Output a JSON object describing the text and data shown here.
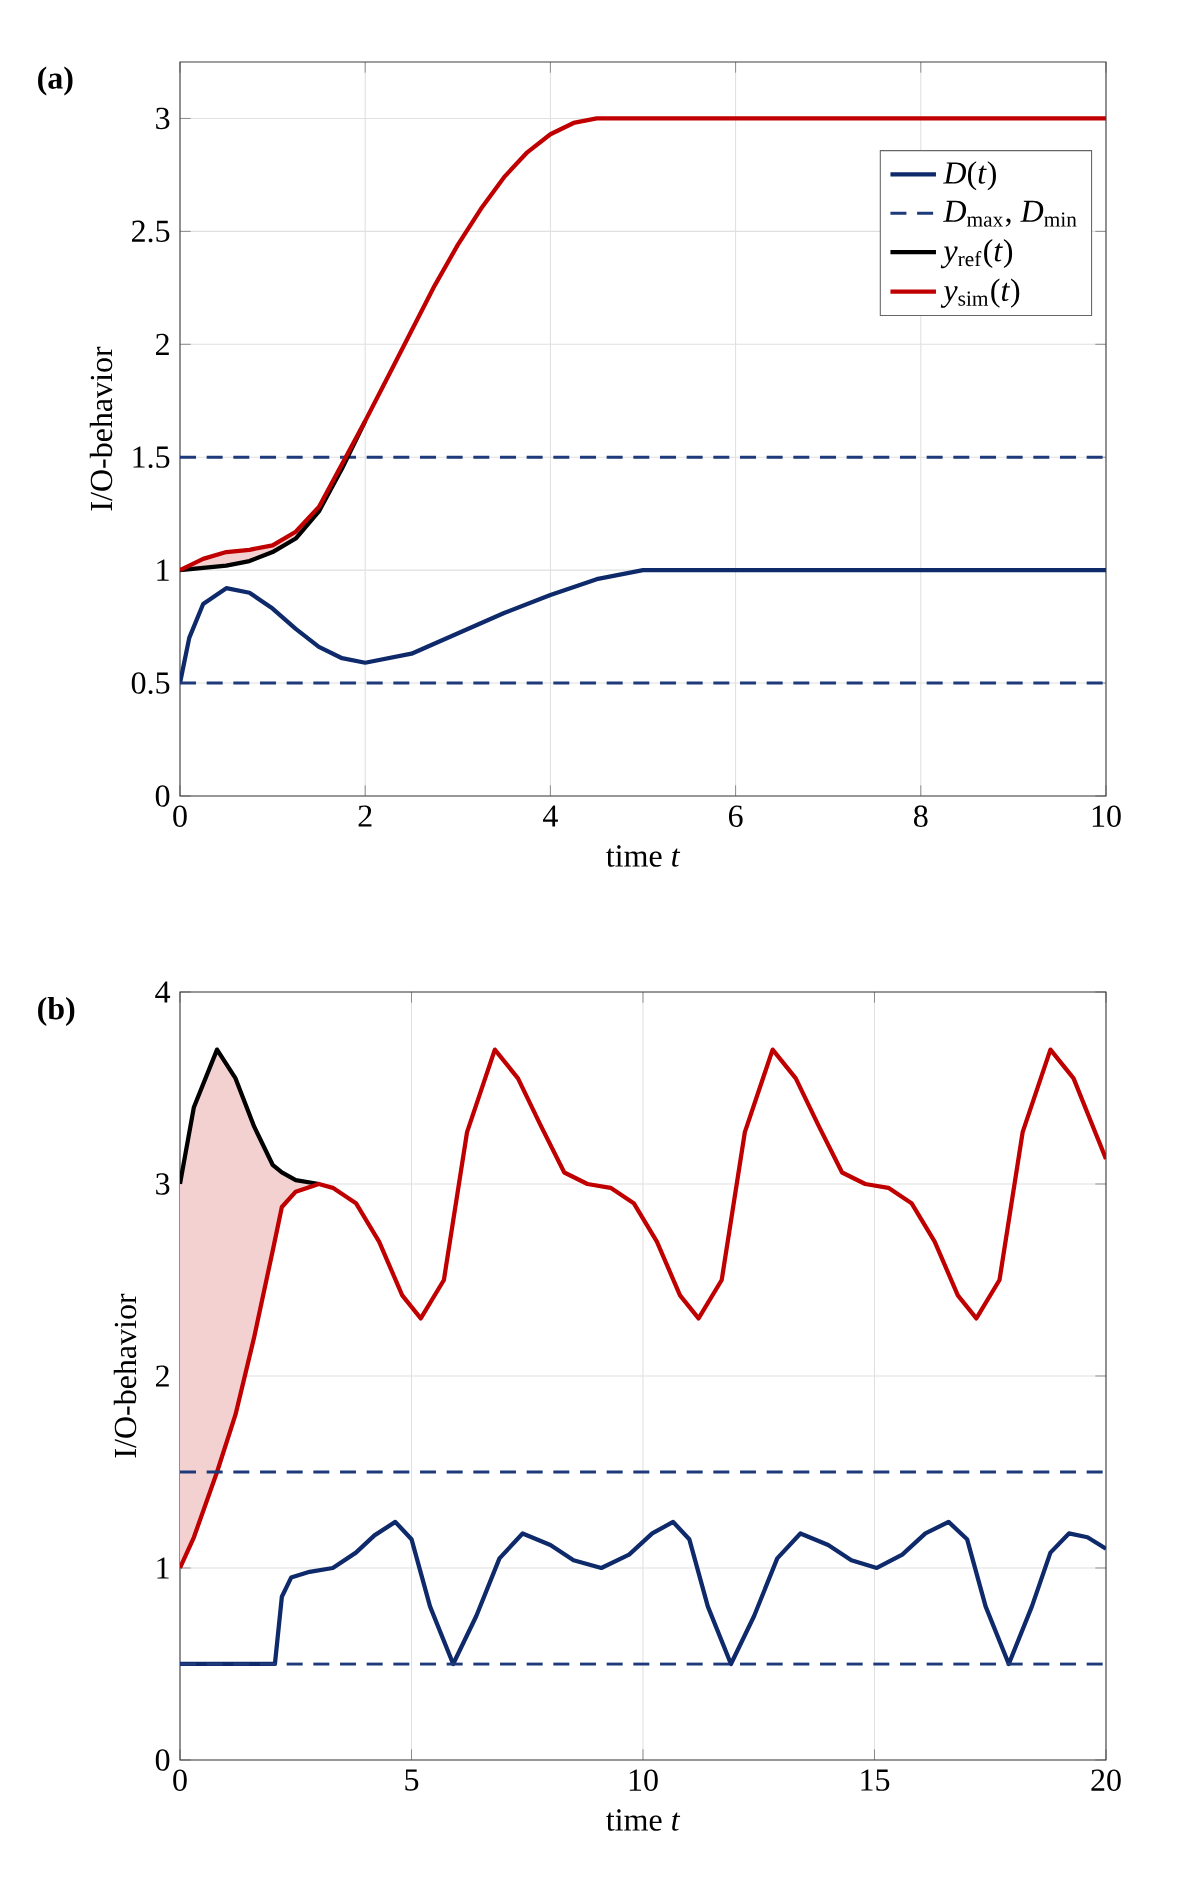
{
  "chart_data": [
    {
      "type": "line",
      "title": "(a)",
      "xlabel": "time *t*",
      "ylabel": "I/O-behavior",
      "xlim": [
        0,
        10
      ],
      "ylim": [
        0,
        3.25
      ],
      "xticks": [
        0,
        2,
        4,
        6,
        8,
        10
      ],
      "yticks": [
        0,
        0.5,
        1,
        1.5,
        2,
        2.5,
        3
      ],
      "grid": true,
      "legend": "top right",
      "series": [
        {
          "name": "*D*(*t*)",
          "color": "#0f2a6b",
          "x": [
            0,
            0.1,
            0.25,
            0.5,
            0.75,
            1,
            1.25,
            1.5,
            1.75,
            2,
            2.5,
            3,
            3.5,
            4,
            4.5,
            5,
            10
          ],
          "values": [
            0.5,
            0.7,
            0.85,
            0.92,
            0.9,
            0.83,
            0.74,
            0.66,
            0.61,
            0.59,
            0.63,
            0.72,
            0.81,
            0.89,
            0.96,
            1.0,
            1.0
          ]
        },
        {
          "name": "*D*$_{max}$, *D*$_{min}$",
          "color": "#1f3a7a",
          "line_style": "dashed",
          "x": [
            0,
            10
          ],
          "values": [
            1.5,
            1.5
          ]
        },
        {
          "color": "#1f3a7a",
          "line_style": "dashed",
          "x": [
            0,
            10
          ],
          "values": [
            0.5,
            0.5
          ]
        },
        {
          "name": "*y*$_{ref}$(*t*)",
          "color": "#000000",
          "x": [
            0,
            0.25,
            0.5,
            0.75,
            1,
            1.25,
            1.5,
            1.75,
            2
          ],
          "values": [
            1,
            1.01,
            1.02,
            1.04,
            1.08,
            1.14,
            1.26,
            1.45,
            1.66
          ]
        },
        {
          "name": "*y*$_{sim}$(*t*)",
          "color": "#c00000",
          "x": [
            0,
            0.25,
            0.5,
            0.75,
            1,
            1.25,
            1.5,
            1.75,
            2,
            2.25,
            2.5,
            2.75,
            3,
            3.25,
            3.5,
            3.75,
            4,
            4.25,
            4.5,
            4.75,
            5,
            10
          ],
          "values": [
            1,
            1.05,
            1.08,
            1.09,
            1.11,
            1.17,
            1.28,
            1.47,
            1.66,
            1.86,
            2.06,
            2.26,
            2.44,
            2.6,
            2.74,
            2.85,
            2.93,
            2.98,
            3.0,
            3.0,
            3.0,
            3.0
          ],
          "lower": [
            1,
            1.01,
            1.02,
            1.04,
            1.08,
            1.14,
            1.26,
            1.45,
            1.66,
            1.86,
            2.06,
            2.26,
            2.44,
            2.6,
            2.74,
            2.85,
            2.93,
            2.98,
            3.0,
            3.0,
            3.0,
            3.0
          ],
          "upper": [
            1,
            1.05,
            1.08,
            1.09,
            1.11,
            1.17,
            1.28,
            1.47,
            1.66,
            1.86,
            2.06,
            2.26,
            2.44,
            2.6,
            2.74,
            2.85,
            2.93,
            2.98,
            3.0,
            3.0,
            3.0,
            3.0
          ]
        }
      ]
    },
    {
      "type": "line",
      "title": "(b)",
      "xlabel": "time *t*",
      "ylabel": "I/O-behavior",
      "xlim": [
        0,
        20
      ],
      "ylim": [
        0,
        4
      ],
      "xticks": [
        0,
        5,
        10,
        15,
        20
      ],
      "yticks": [
        0,
        1,
        2,
        3,
        4
      ],
      "grid": true,
      "series": [
        {
          "color": "#0f2a6b",
          "x": [
            0,
            2.05,
            2.2,
            2.4,
            2.8,
            3.3,
            3.8,
            4.2,
            4.65,
            5.0,
            5.4,
            5.9,
            6.4,
            6.9,
            7.4,
            8.0,
            8.5,
            9.1,
            9.7,
            10.2,
            10.65,
            11.0,
            11.4,
            11.9,
            12.4,
            12.9,
            13.4,
            14.0,
            14.5,
            15.05,
            15.6,
            16.1,
            16.6,
            17.0,
            17.4,
            17.9,
            18.4,
            18.8,
            19.2,
            19.6,
            20
          ],
          "values": [
            0.5,
            0.5,
            0.85,
            0.95,
            0.98,
            1.0,
            1.08,
            1.17,
            1.24,
            1.15,
            0.8,
            0.5,
            0.75,
            1.05,
            1.18,
            1.12,
            1.04,
            1.0,
            1.07,
            1.18,
            1.24,
            1.15,
            0.8,
            0.5,
            0.75,
            1.05,
            1.18,
            1.12,
            1.04,
            1.0,
            1.07,
            1.18,
            1.24,
            1.15,
            0.8,
            0.5,
            0.8,
            1.08,
            1.18,
            1.16,
            1.1
          ]
        },
        {
          "color": "#000000",
          "x": [
            0,
            0.3,
            0.8,
            1.2,
            1.6,
            2.0,
            2.2,
            2.5,
            3.0
          ],
          "values": [
            3,
            3.4,
            3.7,
            3.55,
            3.3,
            3.1,
            3.06,
            3.02,
            3.0
          ]
        },
        {
          "color": "#c00000",
          "x": [
            0,
            0.3,
            0.8,
            1.2,
            1.6,
            2.0,
            2.2,
            2.5,
            3.0,
            3.3,
            3.8,
            4.3,
            4.8,
            5.2,
            5.7,
            6.2,
            6.8,
            7.3,
            7.8,
            8.3,
            8.8,
            9.3,
            9.8,
            10.3,
            10.8,
            11.2,
            11.7,
            12.2,
            12.8,
            13.3,
            13.8,
            14.3,
            14.8,
            15.3,
            15.8,
            16.3,
            16.8,
            17.2,
            17.7,
            18.2,
            18.8,
            19.3,
            19.8,
            20
          ],
          "values": [
            1,
            1.16,
            1.5,
            1.8,
            2.2,
            2.65,
            2.88,
            2.96,
            3.0,
            2.98,
            2.9,
            2.7,
            2.42,
            2.3,
            2.5,
            3.27,
            3.7,
            3.55,
            3.3,
            3.06,
            3.0,
            2.98,
            2.9,
            2.7,
            2.42,
            2.3,
            2.5,
            3.27,
            3.7,
            3.55,
            3.3,
            3.06,
            3.0,
            2.98,
            2.9,
            2.7,
            2.42,
            2.3,
            2.5,
            3.27,
            3.7,
            3.55,
            3.25,
            3.13
          ],
          "lower": [
            1,
            1.16,
            1.5,
            1.8,
            2.2,
            2.65,
            2.88,
            2.96,
            3.0,
            2.98,
            2.9,
            2.7,
            2.42,
            2.3,
            2.5,
            3.27,
            3.7,
            3.55,
            3.3,
            3.06,
            3.0,
            2.98,
            2.9,
            2.7,
            2.42,
            2.3,
            2.5,
            3.27,
            3.7,
            3.55,
            3.3,
            3.06,
            3.0,
            2.98,
            2.9,
            2.7,
            2.42,
            2.3,
            2.5,
            3.27,
            3.7,
            3.55,
            3.25,
            3.13
          ],
          "upper": [
            3,
            3.4,
            3.7,
            3.55,
            3.3,
            3.1,
            3.06,
            3.02,
            3.0,
            2.98,
            2.9,
            2.7,
            2.42,
            2.3,
            2.5,
            3.27,
            3.7,
            3.55,
            3.3,
            3.06,
            3.0,
            2.98,
            2.9,
            2.7,
            2.42,
            2.3,
            2.5,
            3.27,
            3.7,
            3.55,
            3.3,
            3.06,
            3.0,
            2.98,
            2.9,
            2.7,
            2.42,
            2.3,
            2.5,
            3.27,
            3.7,
            3.55,
            3.25,
            3.13
          ]
        }
      ],
      "ref_lines": [
        {
          "axis": "y",
          "value": 1.5,
          "color": "#1f3a7a",
          "line_style": "dashed"
        },
        {
          "axis": "y",
          "value": 0.5,
          "color": "#1f3a7a",
          "line_style": "dashed"
        }
      ]
    }
  ]
}
